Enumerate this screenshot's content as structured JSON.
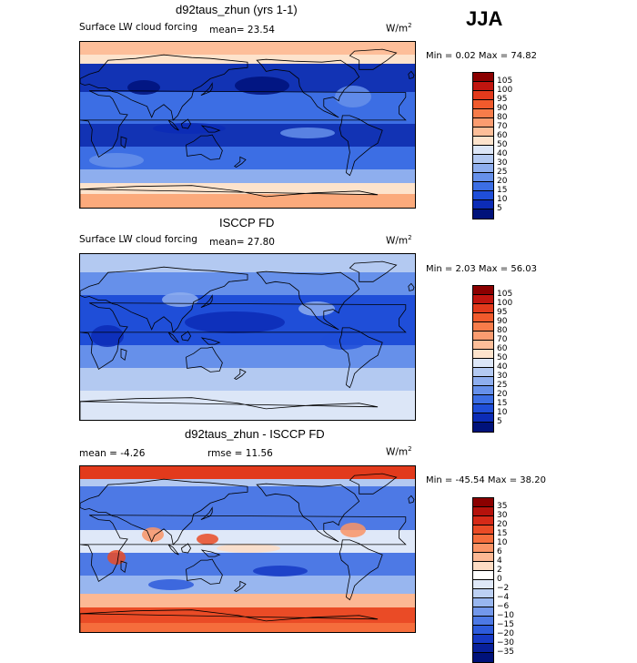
{
  "season": "JJA",
  "panels": [
    {
      "title": "d92taus_zhun (yrs 1-1)",
      "subtitle": "Surface LW cloud forcing",
      "mean_text": "mean=  23.54",
      "units": "W/m",
      "units_sup": "2",
      "minmax": "Min =   0.02 Max =  74.82",
      "cbar_labels": [
        "105",
        "100",
        "95",
        "90",
        "80",
        "70",
        "60",
        "50",
        "40",
        "30",
        "25",
        "20",
        "15",
        "10",
        "5"
      ],
      "cbar_colors": [
        "#8b0000",
        "#c0150f",
        "#e23a1c",
        "#f05a2c",
        "#f77c4a",
        "#fb9c70",
        "#fdbe99",
        "#fde3cc",
        "#dce6f7",
        "#b3c9f1",
        "#8eaeee",
        "#6690ea",
        "#3c6ee4",
        "#1f4ed8",
        "#0c2cb6",
        "#00127a"
      ],
      "map_style": "clim1"
    },
    {
      "title": "ISCCP FD",
      "subtitle": "Surface LW cloud forcing",
      "mean_text": "mean=  27.80",
      "units": "W/m",
      "units_sup": "2",
      "minmax": "Min =   2.03 Max =  56.03",
      "cbar_labels": [
        "105",
        "100",
        "95",
        "90",
        "80",
        "70",
        "60",
        "50",
        "40",
        "30",
        "25",
        "20",
        "15",
        "10",
        "5"
      ],
      "cbar_colors": [
        "#8b0000",
        "#c0150f",
        "#e23a1c",
        "#f05a2c",
        "#f77c4a",
        "#fb9c70",
        "#fdbe99",
        "#fde3cc",
        "#dce6f7",
        "#b3c9f1",
        "#8eaeee",
        "#6690ea",
        "#3c6ee4",
        "#1f4ed8",
        "#0c2cb6",
        "#00127a"
      ],
      "map_style": "clim2"
    },
    {
      "title": "d92taus_zhun - ISCCP FD",
      "mean_text": "mean =   -4.26",
      "rmse_text": "rmse =  11.56",
      "units": "W/m",
      "units_sup": "2",
      "minmax": "Min = -45.54 Max =  38.20",
      "cbar_labels": [
        "35",
        "30",
        "20",
        "15",
        "10",
        "6",
        "4",
        "2",
        "0",
        "−2",
        "−4",
        "−6",
        "−10",
        "−15",
        "−20",
        "−30",
        "−35"
      ],
      "cbar_colors": [
        "#8b0000",
        "#b5120c",
        "#d62a18",
        "#ea4b26",
        "#f56d3c",
        "#fa9466",
        "#fcb894",
        "#fddcc4",
        "#ffffff",
        "#dfe8f8",
        "#bcd0f3",
        "#98b6ef",
        "#7398eb",
        "#4d79e5",
        "#2d5bdb",
        "#1639c4",
        "#08209a",
        "#00127a"
      ],
      "map_style": "diff"
    }
  ]
}
